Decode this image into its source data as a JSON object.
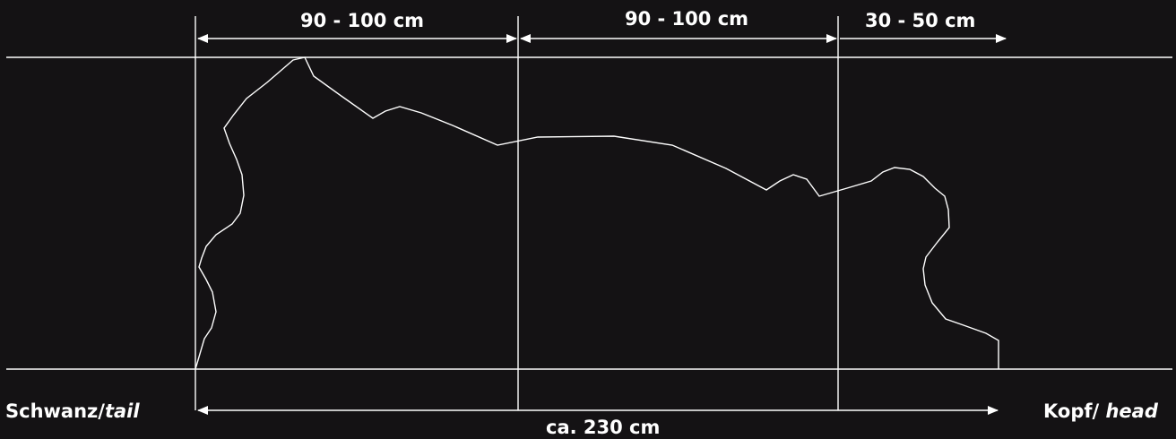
{
  "segments": {
    "seg1": "90 - 100 cm",
    "seg2": "90 - 100 cm",
    "seg3": "30 - 50 cm"
  },
  "ends": {
    "tail_de": "Schwanz",
    "tail_sep": "/",
    "tail_en": "tail",
    "head_de": "Kopf",
    "head_sep": "/",
    "head_en": "head"
  },
  "total_length": "ca. 230 cm",
  "colors": {
    "background": "#141214",
    "lines": "#ffffff"
  }
}
